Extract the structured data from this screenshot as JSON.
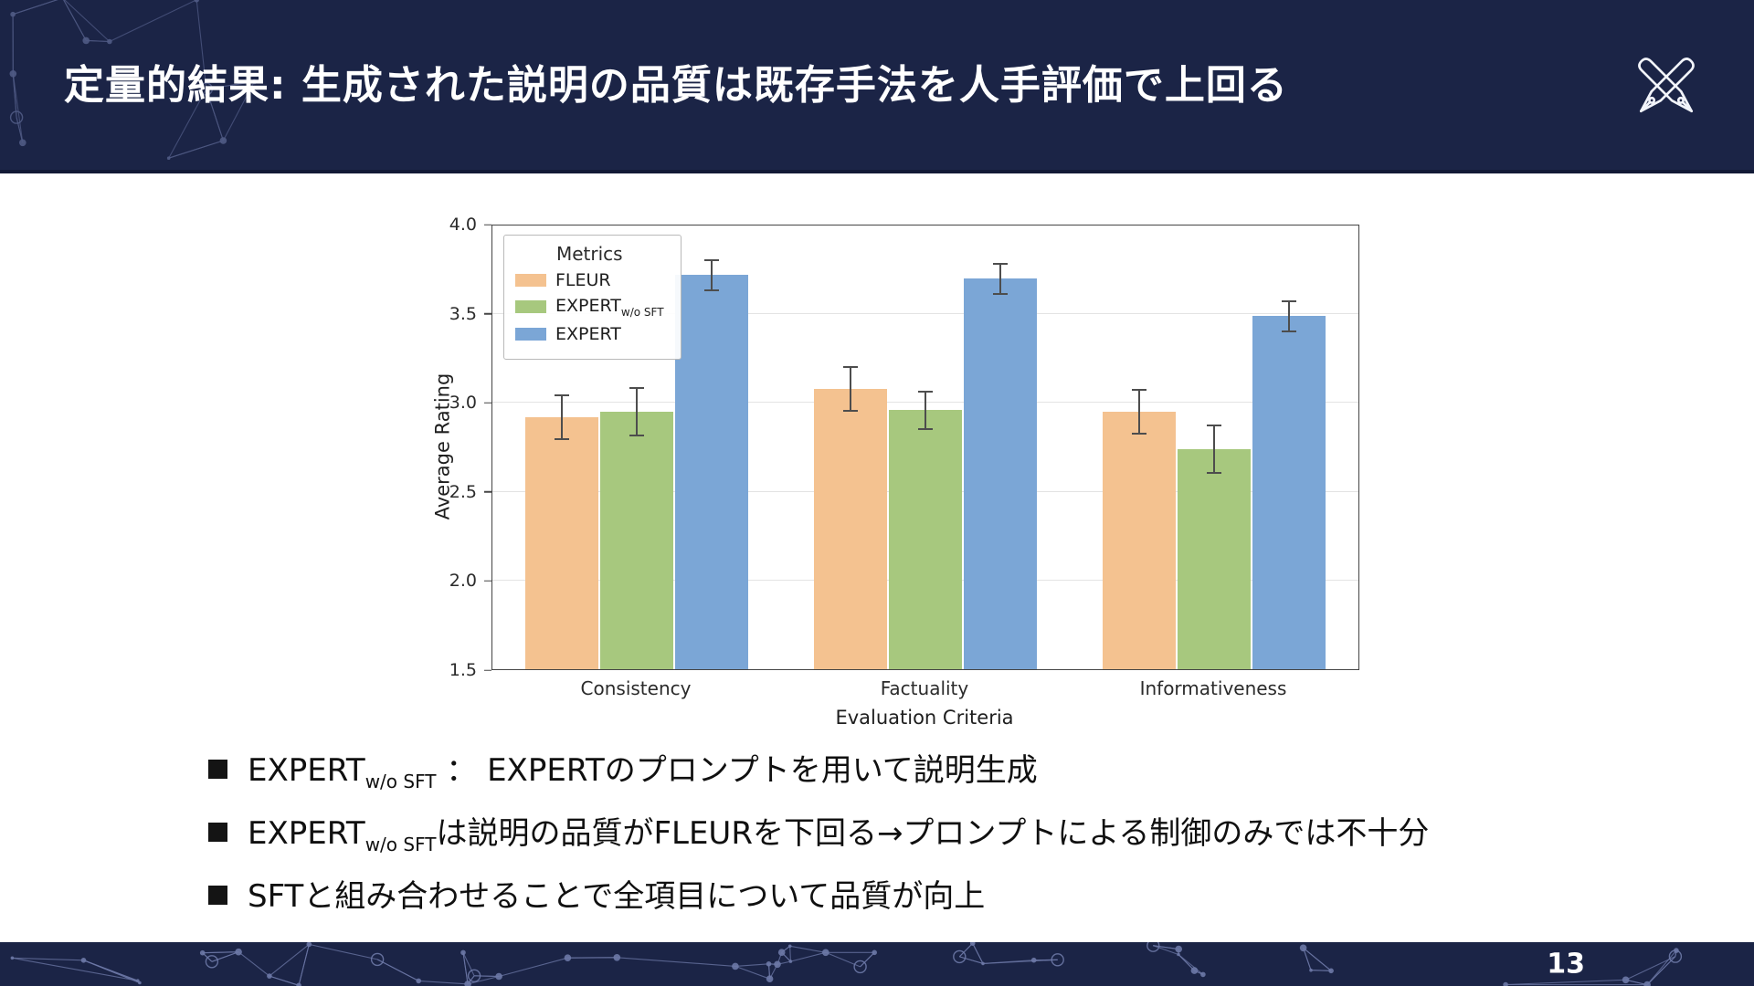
{
  "slide": {
    "title": "定量的結果: 生成された説明の品質は既存手法を人手評価で上回る",
    "page_number": "13"
  },
  "chart_data": {
    "type": "bar",
    "title": "",
    "xlabel": "Evaluation Criteria",
    "ylabel": "Average Rating",
    "ylim": [
      1.5,
      4.0
    ],
    "yticks": [
      1.5,
      2.0,
      2.5,
      3.0,
      3.5,
      4.0
    ],
    "grid": true,
    "legend_title": "Metrics",
    "legend_position": "upper left",
    "categories": [
      "Consistency",
      "Factuality",
      "Informativeness"
    ],
    "series": [
      {
        "name": "FLEUR",
        "name_sub": "",
        "color": "#f4c290",
        "values": [
          2.92,
          3.08,
          2.95
        ],
        "errors": [
          0.13,
          0.13,
          0.13
        ]
      },
      {
        "name": "EXPERT",
        "name_sub": "w/o SFT",
        "color": "#a7c87e",
        "values": [
          2.95,
          2.96,
          2.74
        ],
        "errors": [
          0.14,
          0.11,
          0.14
        ]
      },
      {
        "name": "EXPERT",
        "name_sub": "",
        "color": "#7ba6d6",
        "values": [
          3.72,
          3.7,
          3.49
        ],
        "errors": [
          0.09,
          0.09,
          0.09
        ]
      }
    ]
  },
  "bullets": [
    {
      "pre": "EXPERT",
      "sub": "w/o SFT",
      "post": " ： EXPERTのプロンプトを用いて説明生成"
    },
    {
      "pre": "EXPERT",
      "sub": "w/o SFT",
      "post": "は説明の品質がFLEURを下回る→プロンプトによる制御のみでは不十分"
    },
    {
      "pre": "SFTと組み合わせることで全項目について品質が向上",
      "sub": "",
      "post": ""
    }
  ],
  "colors": {
    "header_bg": "#1b2446",
    "footer_bg": "#1b2446",
    "constellation": "#7b87b8",
    "error_bar": "#4d4d4d"
  }
}
